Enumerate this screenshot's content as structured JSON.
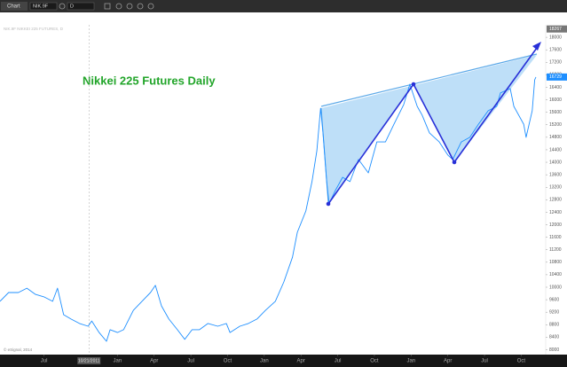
{
  "toolbar": {
    "tab": "Chart",
    "symbol": "NIK.9F",
    "interval": "D"
  },
  "footer": "© eSignal, 2014",
  "chart_data": {
    "type": "line",
    "title": "Nikkei 225 Futures Daily",
    "x": [
      2.4,
      3.1,
      3.9,
      4.6,
      5.3,
      6.0,
      6.7,
      7.1,
      7.6,
      8.2,
      8.9,
      9.6,
      9.9,
      10.5,
      11.1,
      11.4,
      12.0,
      12.5,
      13.3,
      14.0,
      14.7,
      15.1,
      15.6,
      16.2,
      16.9,
      17.5,
      18.1,
      18.7,
      19.4,
      20.2,
      20.9,
      21.2,
      22.0,
      22.7,
      23.4,
      24.1,
      24.9,
      25.6,
      26.3,
      26.7,
      27.4,
      27.9,
      28.3,
      28.6,
      28.8,
      29.1,
      29.3,
      29.8,
      30.4,
      31.0,
      31.7,
      32.5,
      33.2,
      33.9,
      34.6,
      35.4,
      35.9,
      36.5,
      36.9,
      37.5,
      38.3,
      39.0,
      39.4,
      40.1,
      40.8,
      41.5,
      42.3,
      43.0,
      43.3,
      44.1,
      44.4,
      45.2,
      45.4,
      45.9,
      46.1,
      46.2
    ],
    "series": [
      {
        "name": "NIK.9F  NIKKEI 225 FUTURES, D",
        "color": "#1e8fff",
        "values": [
          9550,
          9830,
          9830,
          9970,
          9770,
          9690,
          9550,
          9970,
          9120,
          8980,
          8840,
          8750,
          8920,
          8550,
          8270,
          8640,
          8550,
          8640,
          9260,
          9550,
          9830,
          10060,
          9400,
          8980,
          8640,
          8330,
          8640,
          8640,
          8840,
          8750,
          8840,
          8550,
          8750,
          8840,
          8980,
          9260,
          9550,
          10170,
          10960,
          11760,
          12440,
          13380,
          14370,
          15730,
          14940,
          13380,
          12670,
          13090,
          13520,
          13380,
          14090,
          13660,
          14650,
          14650,
          15220,
          15850,
          16500,
          15790,
          15510,
          14940,
          14650,
          14230,
          14090,
          14650,
          14800,
          15220,
          15650,
          15790,
          16220,
          16360,
          15790,
          15220,
          14800,
          15650,
          16640,
          16729
        ]
      }
    ],
    "xlim": [
      2.4,
      47
    ],
    "xticks": [
      {
        "value": 6,
        "label": "Jul"
      },
      {
        "value": 12,
        "label": "Jan"
      },
      {
        "value": 15,
        "label": "Apr"
      },
      {
        "value": 18,
        "label": "Jul"
      },
      {
        "value": 21,
        "label": "Oct"
      },
      {
        "value": 24,
        "label": "Jan"
      },
      {
        "value": 27,
        "label": "Apr"
      },
      {
        "value": 30,
        "label": "Jul"
      },
      {
        "value": 33,
        "label": "Oct"
      },
      {
        "value": 36,
        "label": "Jan"
      },
      {
        "value": 39,
        "label": "Apr"
      },
      {
        "value": 42,
        "label": "Jul"
      },
      {
        "value": 45,
        "label": "Oct"
      }
    ],
    "ylim": [
      7900,
      18400
    ],
    "yticks": [
      8000,
      8400,
      8800,
      9200,
      9600,
      10000,
      10400,
      10800,
      11200,
      11600,
      12000,
      12400,
      12800,
      13200,
      13600,
      14000,
      14400,
      14800,
      15200,
      15600,
      16000,
      16400,
      16800,
      17200,
      17600,
      18000
    ],
    "price_labels": [
      18267,
      16729
    ],
    "crosshair": {
      "x": 9.67,
      "label": "10/21/2011"
    },
    "grid": false
  }
}
